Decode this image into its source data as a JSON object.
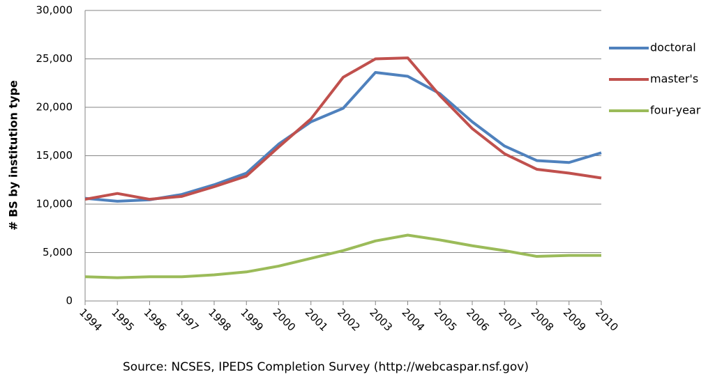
{
  "chart_data": {
    "type": "line",
    "y_label": "# BS by institution type",
    "source": "Source: NCSES, IPEDS Completion Survey (http://webcaspar.nsf.gov)",
    "categories": [
      "1994",
      "1995",
      "1996",
      "1997",
      "1998",
      "1999",
      "2000",
      "2001",
      "2002",
      "2003",
      "2004",
      "2005",
      "2006",
      "2007",
      "2008",
      "2009",
      "2010"
    ],
    "series": [
      {
        "name": "doctoral",
        "color": "#4f81bd",
        "values": [
          10600,
          10300,
          10450,
          11000,
          12000,
          13200,
          16200,
          18500,
          19900,
          23600,
          23200,
          21400,
          18500,
          16000,
          14500,
          14300,
          15300
        ]
      },
      {
        "name": "master's",
        "color": "#c0504d",
        "values": [
          10500,
          11100,
          10500,
          10800,
          11800,
          12900,
          15900,
          18800,
          23100,
          25000,
          25100,
          21200,
          17800,
          15200,
          13600,
          13200,
          12700
        ]
      },
      {
        "name": "four-year",
        "color": "#9bbb59",
        "values": [
          2500,
          2400,
          2500,
          2500,
          2700,
          3000,
          3600,
          4400,
          5200,
          6200,
          6800,
          6300,
          5700,
          5200,
          4600,
          4700,
          4700
        ]
      }
    ],
    "ylim": [
      0,
      30000
    ],
    "yticks": [
      0,
      {
        "value": 5000,
        "label": "5,000"
      },
      {
        "value": 10000,
        "label": "10,000"
      },
      {
        "value": 15000,
        "label": "15,000"
      },
      {
        "value": 20000,
        "label": "20,000"
      },
      {
        "value": 25000,
        "label": "25,000"
      },
      {
        "value": 30000,
        "label": "30,000"
      }
    ],
    "grid": true,
    "legend": "right"
  }
}
